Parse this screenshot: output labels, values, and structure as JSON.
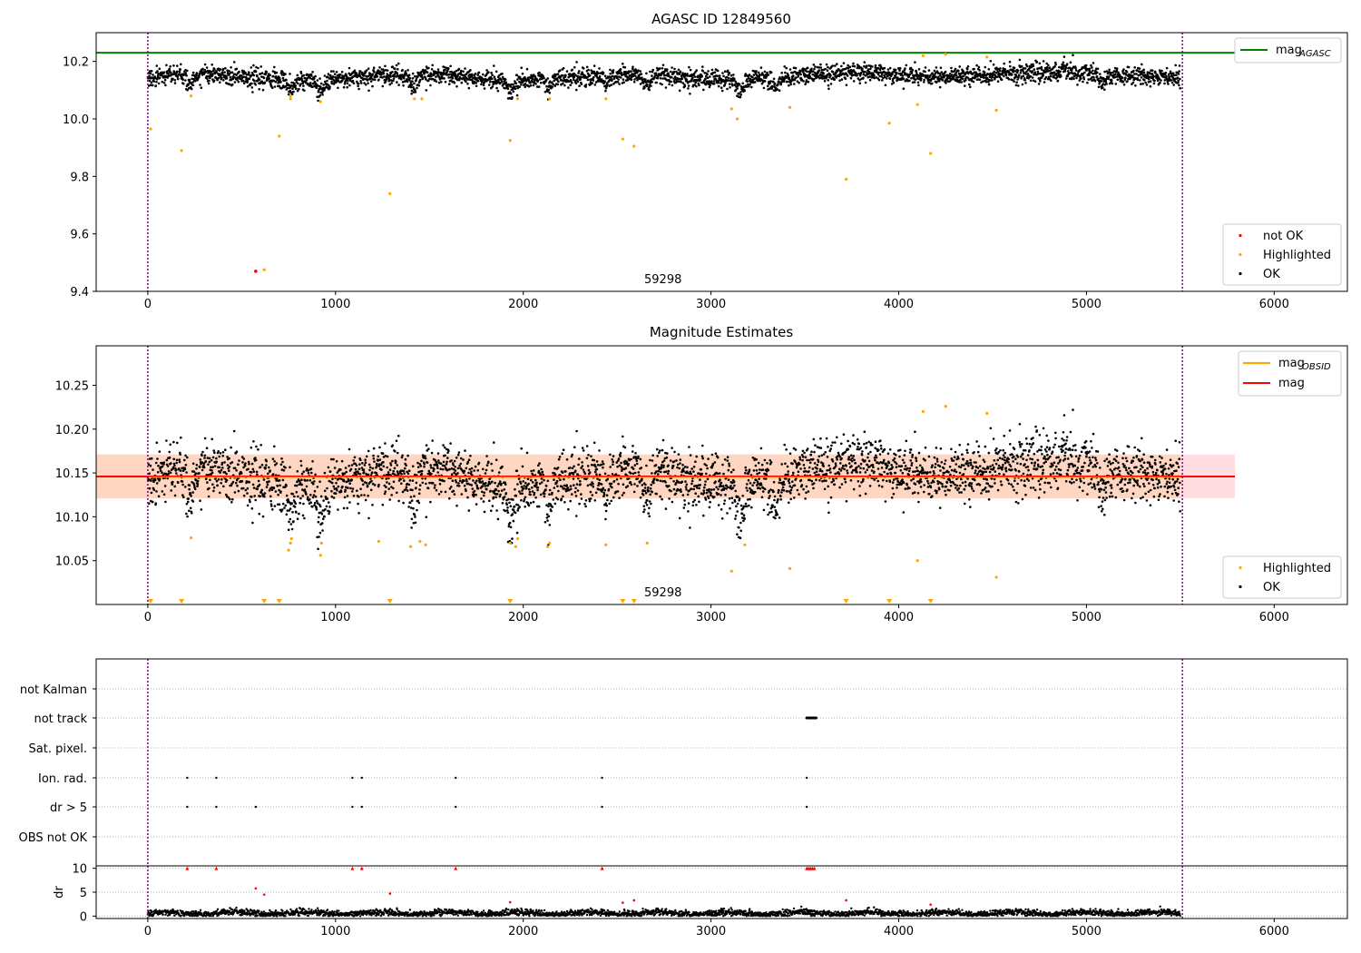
{
  "colors": {
    "ok": "#000000",
    "highlighted": "#ffa500",
    "not_ok": "#ff0000",
    "agasc_line": "#008000",
    "mag_line": "#ff0000",
    "mag_obsid_line": "#ffa500",
    "band_outer": "#ffdde0",
    "band_inner": "#ffd6c2",
    "obs_boundary": "#800080",
    "grid": "#b0b0b0"
  },
  "chart_data": [
    {
      "type": "scatter",
      "title": "AGASC ID 12849560",
      "xlim": [
        -275,
        6390
      ],
      "ylim": [
        9.4,
        10.3
      ],
      "x_ticks": [
        "0",
        "1000",
        "2000",
        "3000",
        "4000",
        "5000",
        "6000"
      ],
      "y_ticks": [
        "9.4",
        "9.6",
        "9.8",
        "10.0",
        "10.2"
      ],
      "mag_agasc": 10.23,
      "obs_boundaries": [
        0,
        5511
      ],
      "obs_label": "59298",
      "ok_trend": {
        "x_range": [
          0,
          5500
        ],
        "center": 10.145,
        "noise": 0.025,
        "dips": [
          [
            230,
            0.03
          ],
          [
            760,
            0.04
          ],
          [
            920,
            0.045
          ],
          [
            1420,
            0.04
          ],
          [
            1930,
            0.05
          ],
          [
            2140,
            0.03
          ],
          [
            2440,
            0.03
          ],
          [
            2660,
            0.04
          ],
          [
            3150,
            0.04
          ],
          [
            3340,
            0.03
          ],
          [
            5080,
            0.03
          ]
        ]
      },
      "highlighted": [
        [
          15,
          9.965
        ],
        [
          180,
          9.89
        ],
        [
          230,
          10.08
        ],
        [
          700,
          9.94
        ],
        [
          620,
          9.475
        ],
        [
          760,
          10.08
        ],
        [
          760,
          10.07
        ],
        [
          920,
          10.06
        ],
        [
          1290,
          9.74
        ],
        [
          1420,
          10.07
        ],
        [
          1460,
          10.07
        ],
        [
          1930,
          9.925
        ],
        [
          1970,
          10.07
        ],
        [
          2140,
          10.07
        ],
        [
          2440,
          10.07
        ],
        [
          2530,
          9.93
        ],
        [
          2590,
          9.905
        ],
        [
          3110,
          10.035
        ],
        [
          3140,
          10.0
        ],
        [
          3420,
          10.04
        ],
        [
          3720,
          9.79
        ],
        [
          3950,
          9.985
        ],
        [
          4100,
          10.05
        ],
        [
          4130,
          10.22
        ],
        [
          4170,
          9.88
        ],
        [
          4250,
          10.225
        ],
        [
          4470,
          10.215
        ],
        [
          4520,
          10.03
        ]
      ],
      "not_ok": [
        [
          575,
          9.47
        ]
      ],
      "legend_upper": [
        {
          "label": "mag",
          "sub": "AGASC"
        }
      ],
      "legend_lower": [
        "not OK",
        "Highlighted",
        "OK"
      ]
    },
    {
      "type": "scatter",
      "title": "Magnitude Estimates",
      "xlim": [
        -275,
        6390
      ],
      "ylim": [
        10.0,
        10.295
      ],
      "x_ticks": [
        "0",
        "1000",
        "2000",
        "3000",
        "4000",
        "5000",
        "6000"
      ],
      "y_ticks": [
        "10.05",
        "10.10",
        "10.15",
        "10.20",
        "10.25"
      ],
      "mag": 10.146,
      "mag_band_outer": [
        10.121,
        10.171
      ],
      "mag_band_inner": [
        10.121,
        10.171
      ],
      "mag_obsid": 10.145,
      "obs_boundaries": [
        0,
        5511
      ],
      "obs_label": "59298",
      "highlighted": [
        [
          230,
          10.076
        ],
        [
          750,
          10.062
        ],
        [
          760,
          10.07
        ],
        [
          765,
          10.075
        ],
        [
          920,
          10.056
        ],
        [
          925,
          10.07
        ],
        [
          1230,
          10.072
        ],
        [
          1400,
          10.066
        ],
        [
          1450,
          10.072
        ],
        [
          1480,
          10.068
        ],
        [
          1930,
          10.07
        ],
        [
          1960,
          10.066
        ],
        [
          1970,
          10.075
        ],
        [
          2130,
          10.066
        ],
        [
          2140,
          10.07
        ],
        [
          2440,
          10.068
        ],
        [
          2660,
          10.07
        ],
        [
          3110,
          10.038
        ],
        [
          3180,
          10.068
        ],
        [
          3420,
          10.041
        ],
        [
          4100,
          10.05
        ],
        [
          4130,
          10.22
        ],
        [
          4250,
          10.226
        ],
        [
          4470,
          10.218
        ],
        [
          4520,
          10.031
        ]
      ],
      "off_scale_low_x": [
        15,
        180,
        620,
        700,
        1290,
        1930,
        2530,
        2590,
        3720,
        3950,
        4170
      ],
      "legend_upper": [
        {
          "label": "mag",
          "sub": "OBSID"
        },
        {
          "label": "mag",
          "sub": ""
        }
      ],
      "legend_lower": [
        "Highlighted",
        "OK"
      ]
    },
    {
      "type": "scatter",
      "title": "",
      "xlim": [
        -275,
        6390
      ],
      "x_ticks": [
        "0",
        "1000",
        "2000",
        "3000",
        "4000",
        "5000",
        "6000"
      ],
      "flag_categories": [
        "not Kalman",
        "not track",
        "Sat. pixel.",
        "Ion. rad.",
        "dr > 5",
        "OBS not OK"
      ],
      "flags": {
        "not track": {
          "range": [
            3510,
            3560
          ]
        },
        "Ion. rad.": [
          210,
          365,
          1090,
          1140,
          1640,
          2420,
          3510
        ],
        "dr > 5": [
          210,
          365,
          575,
          1090,
          1140,
          1640,
          2420,
          3510
        ]
      },
      "obs_boundaries": [
        0,
        5511
      ],
      "dr_ylabel": "dr",
      "dr_ylim": [
        -0.5,
        10.5
      ],
      "dr_ticks": [
        "0",
        "5",
        "10"
      ],
      "dr_high": [
        [
          210,
          10
        ],
        [
          365,
          10
        ],
        [
          1090,
          10
        ],
        [
          1140,
          10
        ],
        [
          1640,
          10
        ],
        [
          2420,
          10
        ],
        [
          3510,
          10
        ],
        [
          3520,
          10
        ],
        [
          3530,
          10
        ],
        [
          3540,
          10
        ],
        [
          3550,
          10
        ]
      ],
      "dr_mid": [
        [
          575,
          5.8
        ],
        [
          620,
          4.5
        ],
        [
          1290,
          4.7
        ],
        [
          1930,
          2.9
        ],
        [
          2530,
          2.8
        ],
        [
          2590,
          3.3
        ],
        [
          3720,
          3.3
        ],
        [
          4170,
          2.4
        ]
      ]
    }
  ]
}
